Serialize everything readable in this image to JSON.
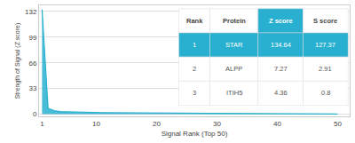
{
  "chart_data": {
    "type": "area",
    "xlabel": "Signal Rank (Top 50)",
    "ylabel": "Strength of Signal (Z score)",
    "x": [
      1,
      2,
      3,
      4,
      5,
      6,
      7,
      8,
      9,
      10,
      11,
      12,
      13,
      14,
      15,
      16,
      17,
      18,
      19,
      20,
      21,
      22,
      23,
      24,
      25,
      26,
      27,
      28,
      29,
      30,
      31,
      32,
      33,
      34,
      35,
      36,
      37,
      38,
      39,
      40,
      41,
      42,
      43,
      44,
      45,
      46,
      47,
      48,
      49,
      50
    ],
    "values": [
      134.64,
      7.27,
      4.36,
      3.1,
      2.8,
      2.5,
      2.3,
      2.1,
      2.0,
      1.9,
      1.8,
      1.7,
      1.6,
      1.55,
      1.5,
      1.45,
      1.4,
      1.35,
      1.3,
      1.25,
      1.2,
      1.15,
      1.1,
      1.05,
      1.0,
      0.95,
      0.9,
      0.85,
      0.8,
      0.75,
      0.7,
      0.65,
      0.6,
      0.55,
      0.5,
      0.45,
      0.4,
      0.35,
      0.3,
      0.25,
      0.2,
      0.18,
      0.16,
      0.14,
      0.12,
      0.1,
      0.08,
      0.06,
      0.04,
      0.02
    ],
    "color": "#29b0d0",
    "xlim": [
      0.5,
      52
    ],
    "ylim": [
      -3,
      140
    ],
    "xticks": [
      1,
      10,
      20,
      30,
      40,
      50
    ],
    "yticks": [
      0,
      33,
      66,
      99,
      132
    ],
    "grid": "y",
    "table": {
      "headers": [
        "Rank",
        "Protein",
        "Z score",
        "S score"
      ],
      "rows": [
        [
          "1",
          "STAR",
          "134.64",
          "127.37"
        ],
        [
          "2",
          "ALPP",
          "7.27",
          "2.91"
        ],
        [
          "3",
          "ITIH5",
          "4.36",
          "0.8"
        ]
      ]
    }
  }
}
